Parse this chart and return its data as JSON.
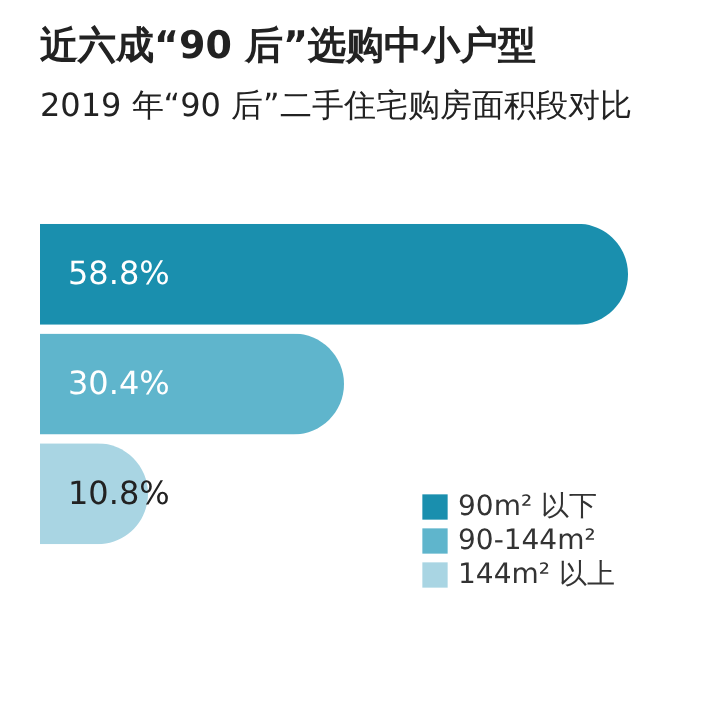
{
  "chart_data": {
    "type": "bar",
    "orientation": "horizontal",
    "title": "近六成“90 后”选购中小户型",
    "subtitle": "2019 年“90 后”二手住宅购房面积段对比",
    "categories": [
      null
    ],
    "series": [
      {
        "name": "90m² 以下",
        "color": "#1a8fae",
        "values": [
          58.8
        ],
        "value_labels": [
          "58.8%"
        ]
      },
      {
        "name": "90-144m²",
        "color": "#5fb5cc",
        "values": [
          30.4
        ],
        "value_labels": [
          "30.4%"
        ]
      },
      {
        "name": "144m² 以上",
        "color": "#a9d5e3",
        "values": [
          10.8
        ],
        "value_labels": [
          "10.8%"
        ]
      }
    ],
    "tick_labels": false,
    "grid": false,
    "legend": "bottom right"
  }
}
